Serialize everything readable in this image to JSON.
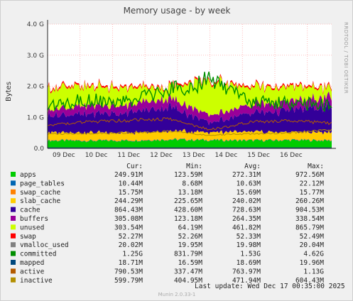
{
  "chart_data": {
    "type": "area",
    "title": "Memory usage - by week",
    "ylabel": "Bytes",
    "side_text": "RRDTOOL / TOBI OETIKER",
    "footer": "Munin 2.0.33-1",
    "last_update": "Last update:  Wed Dec 17 00:35:00 2025",
    "ylim": [
      0,
      4.0
    ],
    "y_unit": "G",
    "y_ticks": [
      "0.0",
      "1.0 G",
      "2.0 G",
      "3.0 G",
      "4.0 G"
    ],
    "x_ticks": [
      "09 Dec",
      "10 Dec",
      "11 Dec",
      "12 Dec",
      "13 Dec",
      "14 Dec",
      "15 Dec",
      "16 Dec"
    ],
    "grid": true,
    "columns": [
      "Cur:",
      "Min:",
      "Avg:",
      "Max:"
    ],
    "series": [
      {
        "name": "apps",
        "color": "#00cc00",
        "kind": "area",
        "approx": [
          0.25,
          0.24,
          0.25,
          0.28,
          0.26,
          0.25,
          0.26,
          0.25
        ],
        "cur": "249.91M",
        "min": "123.59M",
        "avg": "272.31M",
        "max": "972.56M"
      },
      {
        "name": "page_tables",
        "color": "#0066b3",
        "kind": "area",
        "approx": [
          0.01,
          0.01,
          0.01,
          0.01,
          0.01,
          0.01,
          0.01,
          0.01
        ],
        "cur": "10.44M",
        "min": "8.68M",
        "avg": "10.63M",
        "max": "22.12M"
      },
      {
        "name": "swap_cache",
        "color": "#ff8000",
        "kind": "area",
        "approx": [
          0.016,
          0.016,
          0.016,
          0.016,
          0.016,
          0.016,
          0.016,
          0.016
        ],
        "cur": "15.75M",
        "min": "13.18M",
        "avg": "15.69M",
        "max": "15.77M"
      },
      {
        "name": "slab_cache",
        "color": "#ffcc00",
        "kind": "area",
        "approx": [
          0.24,
          0.24,
          0.23,
          0.25,
          0.24,
          0.24,
          0.24,
          0.24
        ],
        "cur": "244.29M",
        "min": "225.65M",
        "avg": "240.02M",
        "max": "260.26M"
      },
      {
        "name": "cache",
        "color": "#330099",
        "kind": "area",
        "approx": [
          0.55,
          0.6,
          0.65,
          0.8,
          0.3,
          0.6,
          0.7,
          0.85
        ],
        "cur": "864.43M",
        "min": "428.60M",
        "avg": "728.63M",
        "max": "904.53M"
      },
      {
        "name": "buffers",
        "color": "#990099",
        "kind": "area",
        "approx": [
          0.2,
          0.26,
          0.26,
          0.28,
          0.25,
          0.27,
          0.28,
          0.3
        ],
        "cur": "305.08M",
        "min": "123.18M",
        "avg": "264.35M",
        "max": "338.54M"
      },
      {
        "name": "unused",
        "color": "#ccff00",
        "kind": "area",
        "approx": [
          0.68,
          0.59,
          0.54,
          0.34,
          1.1,
          0.56,
          0.45,
          0.3
        ],
        "cur": "303.54M",
        "min": "64.19M",
        "avg": "461.82M",
        "max": "865.79M"
      },
      {
        "name": "swap",
        "color": "#ff0000",
        "kind": "area",
        "approx": [
          0.052,
          0.052,
          0.052,
          0.052,
          0.052,
          0.052,
          0.052,
          0.052
        ],
        "cur": "52.27M",
        "min": "52.26M",
        "avg": "52.33M",
        "max": "52.49M"
      },
      {
        "name": "vmalloc_used",
        "color": "#808080",
        "kind": "line",
        "approx": [
          0.02,
          0.02,
          0.02,
          0.02,
          0.02,
          0.02,
          0.02,
          0.02
        ],
        "cur": "20.02M",
        "min": "19.95M",
        "avg": "19.98M",
        "max": "20.04M"
      },
      {
        "name": "committed",
        "color": "#008f00",
        "kind": "line",
        "approx": [
          1.4,
          1.55,
          1.5,
          1.85,
          2.2,
          1.5,
          1.45,
          1.4
        ],
        "cur": "1.25G",
        "min": "831.79M",
        "avg": "1.53G",
        "max": "4.62G"
      },
      {
        "name": "mapped",
        "color": "#00487d",
        "kind": "line",
        "approx": [
          0.018,
          0.018,
          0.018,
          0.018,
          0.018,
          0.018,
          0.018,
          0.018
        ],
        "cur": "18.71M",
        "min": "16.59M",
        "avg": "18.69M",
        "max": "19.96M"
      },
      {
        "name": "active",
        "color": "#b35a00",
        "kind": "line",
        "approx": [
          0.75,
          0.85,
          0.9,
          0.95,
          0.6,
          0.85,
          0.9,
          0.8
        ],
        "cur": "790.53M",
        "min": "337.47M",
        "avg": "763.97M",
        "max": "1.13G"
      },
      {
        "name": "inactive",
        "color": "#b38f00",
        "kind": "line",
        "approx": [
          0.46,
          0.48,
          0.5,
          0.55,
          0.42,
          0.47,
          0.5,
          0.6
        ],
        "cur": "599.79M",
        "min": "404.95M",
        "avg": "471.94M",
        "max": "604.43M"
      }
    ]
  }
}
